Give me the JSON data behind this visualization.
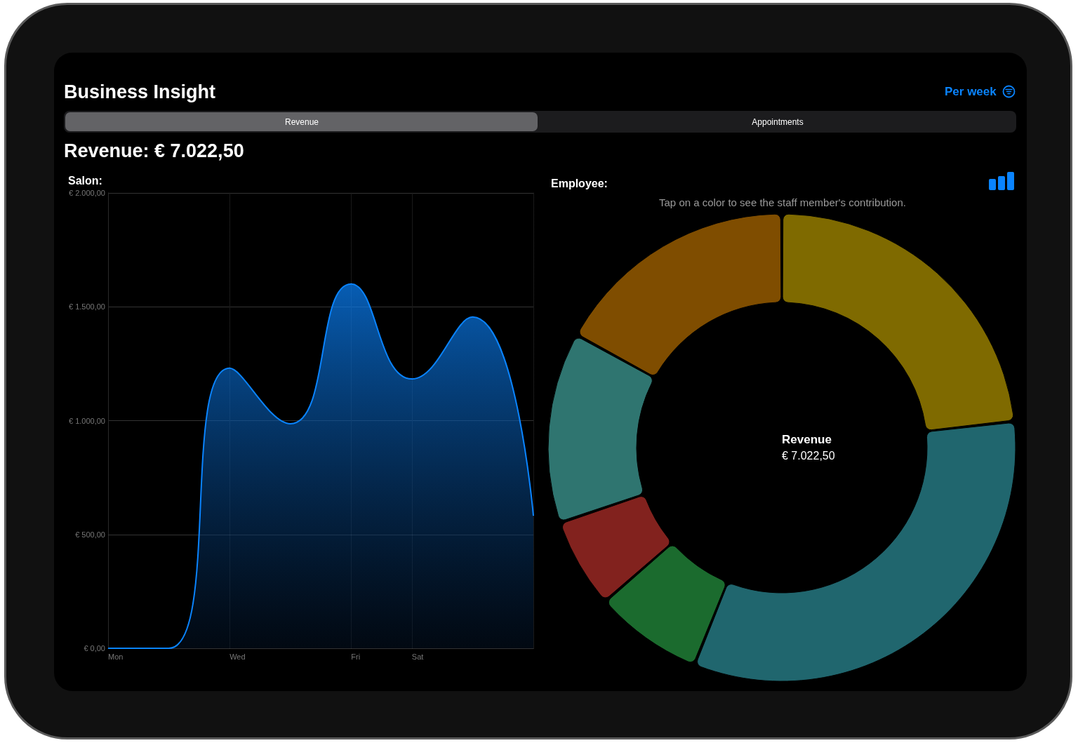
{
  "chart_data": [
    {
      "type": "area",
      "title": "Salon:",
      "annotations": [
        "Business Insight",
        "Per week",
        "Revenue",
        "Appointments",
        "Revenue: € 7.022,50"
      ],
      "categories": [
        "Mon",
        null,
        "Wed",
        null,
        "Fri",
        "Sat",
        null,
        null
      ],
      "series": [
        {
          "color": "#0a84ff",
          "values": [
            0,
            0,
            1230,
            986,
            1600,
            1183,
            1455,
            582
          ]
        }
      ],
      "ylim": [
        0,
        2000
      ],
      "yticks": [
        {
          "value": 0,
          "label": "€ 0,00"
        },
        {
          "value": 500,
          "label": "€ 500,00"
        },
        {
          "value": 1000,
          "label": "€ 1.000,00"
        },
        {
          "value": 1500,
          "label": "€ 1.500,00"
        },
        {
          "value": 2000,
          "label": "€ 2.000,00"
        }
      ],
      "grid": true
    },
    {
      "type": "donut",
      "title": "Employee:",
      "subtitle": "Tap on a color to see the staff member's contribution.",
      "annotations": [
        "Revenue",
        "€ 7.022,50"
      ],
      "categories": [
        null,
        null,
        null,
        null,
        null,
        null
      ],
      "values": [
        23.2,
        32.9,
        7.5,
        6.2,
        13.2,
        17.0
      ],
      "colors": [
        "#7f6a00",
        "#20666e",
        "#1b6b2e",
        "#82221e",
        "#2f7570",
        "#7f4d00"
      ]
    }
  ]
}
